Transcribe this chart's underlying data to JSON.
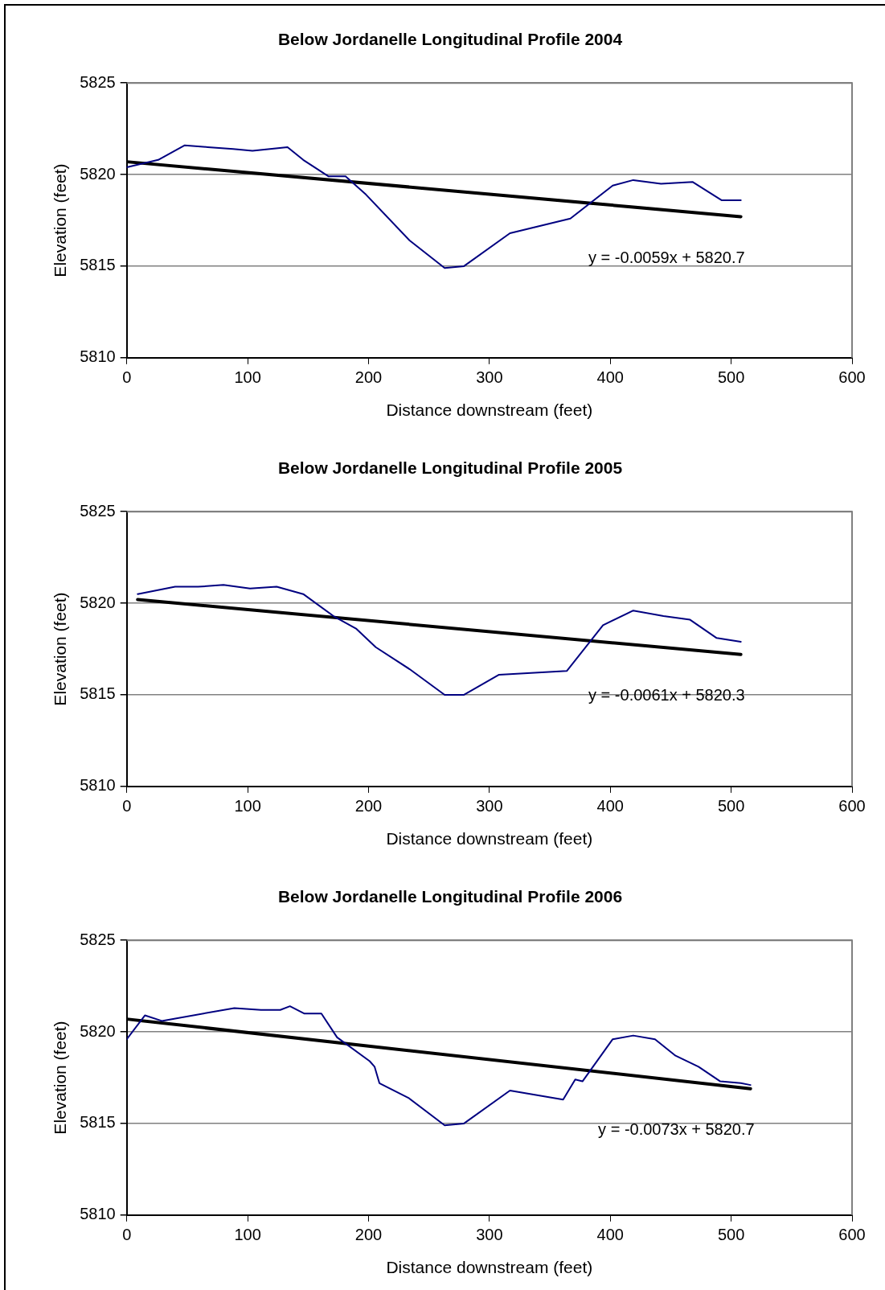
{
  "chart_data": [
    {
      "type": "line",
      "title": "Below Jordanelle Longitudinal Profile 2004",
      "xlabel": "Distance downstream (feet)",
      "ylabel": "Elevation (feet)",
      "xlim": [
        0,
        600
      ],
      "xticks": [
        0,
        100,
        200,
        300,
        400,
        500,
        600
      ],
      "ylim": [
        5810,
        5825
      ],
      "yticks": [
        5810,
        5815,
        5820,
        5825
      ],
      "grid": "y",
      "legend": false,
      "marker": "none",
      "line_style": "solid",
      "series": [
        {
          "color": "#000080",
          "x": [
            0,
            26,
            48,
            67,
            88,
            104,
            133,
            146,
            167,
            181,
            198,
            234,
            263,
            279,
            317,
            367,
            402,
            419,
            442,
            468,
            492,
            508
          ],
          "values": [
            5820.4,
            5820.8,
            5821.6,
            5821.5,
            5821.4,
            5821.3,
            5821.5,
            5820.8,
            5819.9,
            5819.9,
            5818.9,
            5816.4,
            5814.9,
            5815.0,
            5816.8,
            5817.6,
            5819.4,
            5819.7,
            5819.5,
            5819.6,
            5818.6,
            5818.6
          ]
        },
        {
          "color": "#000000",
          "x": [
            0,
            508
          ],
          "values": [
            5820.7,
            5817.7
          ]
        }
      ],
      "annotations": [
        "y = -0.0059x + 5820.7"
      ]
    },
    {
      "type": "line",
      "title": "Below Jordanelle Longitudinal Profile 2005",
      "xlabel": "Distance downstream (feet)",
      "ylabel": "Elevation (feet)",
      "xlim": [
        0,
        600
      ],
      "xticks": [
        0,
        100,
        200,
        300,
        400,
        500,
        600
      ],
      "ylim": [
        5810,
        5825
      ],
      "yticks": [
        5810,
        5815,
        5820,
        5825
      ],
      "grid": "y",
      "legend": false,
      "marker": "none",
      "line_style": "solid",
      "series": [
        {
          "color": "#000080",
          "x": [
            9,
            40,
            59,
            80,
            102,
            124,
            146,
            171,
            190,
            206,
            234,
            263,
            279,
            308,
            364,
            394,
            419,
            444,
            466,
            488,
            508
          ],
          "values": [
            5820.5,
            5820.9,
            5820.9,
            5821.0,
            5820.8,
            5820.9,
            5820.5,
            5819.3,
            5818.6,
            5817.6,
            5816.4,
            5815.0,
            5815.0,
            5816.1,
            5816.3,
            5818.8,
            5819.6,
            5819.3,
            5819.1,
            5818.1,
            5817.9
          ]
        },
        {
          "color": "#000000",
          "x": [
            9,
            508
          ],
          "values": [
            5820.2,
            5817.2
          ]
        }
      ],
      "annotations": [
        "y = -0.0061x + 5820.3"
      ]
    },
    {
      "type": "line",
      "title": "Below Jordanelle Longitudinal Profile 2006",
      "xlabel": "Distance downstream (feet)",
      "ylabel": "Elevation (feet)",
      "xlim": [
        0,
        600
      ],
      "xticks": [
        0,
        100,
        200,
        300,
        400,
        500,
        600
      ],
      "ylim": [
        5810,
        5825
      ],
      "yticks": [
        5810,
        5815,
        5820,
        5825
      ],
      "grid": "y",
      "legend": false,
      "marker": "none",
      "line_style": "solid",
      "series": [
        {
          "color": "#000080",
          "x": [
            0,
            15,
            29,
            89,
            111,
            127,
            135,
            147,
            161,
            174,
            201,
            205,
            209,
            233,
            263,
            279,
            317,
            361,
            371,
            377,
            402,
            419,
            437,
            454,
            473,
            491,
            508,
            516
          ],
          "values": [
            5819.6,
            5820.9,
            5820.6,
            5821.3,
            5821.2,
            5821.2,
            5821.4,
            5821.0,
            5821.0,
            5819.7,
            5818.4,
            5818.1,
            5817.2,
            5816.4,
            5814.9,
            5815.0,
            5816.8,
            5816.3,
            5817.4,
            5817.3,
            5819.6,
            5819.8,
            5819.6,
            5818.7,
            5818.1,
            5817.3,
            5817.2,
            5817.1
          ]
        },
        {
          "color": "#000000",
          "x": [
            0,
            516
          ],
          "values": [
            5820.7,
            5816.9
          ]
        }
      ],
      "annotations": [
        "y = -0.0073x + 5820.7"
      ]
    }
  ]
}
